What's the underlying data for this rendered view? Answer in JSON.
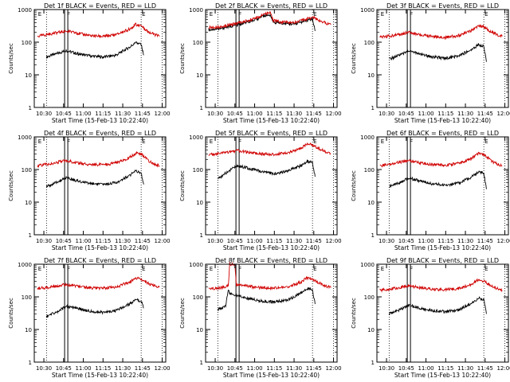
{
  "colors": {
    "events": "#000000",
    "lld": "#d00000",
    "axes": "#000000"
  },
  "common": {
    "xlabel": "Start Time (15-Feb-13 10:22:40)",
    "ylabel": "Counts/sec",
    "xtick_labels": [
      "10:30",
      "10:45",
      "11:00",
      "11:15",
      "11:30",
      "11:45",
      "12:00"
    ],
    "xtick_minutes": [
      30,
      45,
      60,
      75,
      90,
      105,
      120
    ],
    "ytick_labels": [
      "1",
      "10",
      "100",
      "1000"
    ],
    "yscale": "log",
    "ylim": [
      1,
      1000
    ],
    "xlim_minutes": [
      22.7,
      122.7
    ],
    "marker_letters": [
      "E",
      "F",
      "E"
    ],
    "marker_minutes": [
      25,
      47,
      104
    ],
    "dotted_minutes": [
      32,
      104,
      120
    ]
  },
  "chart_data": [
    {
      "type": "line",
      "title": "Det 1f BLACK = Events, RED = LLD",
      "ylabel": "Counts/sec",
      "xlabel": "Start Time (15-Feb-13 10:22:40)",
      "dotted_minutes": [
        32,
        104,
        120
      ],
      "series": [
        {
          "name": "Events",
          "color": "#000000",
          "x_minutes": [
            32,
            40,
            47,
            55,
            65,
            75,
            85,
            95,
            100,
            104,
            106
          ],
          "values": [
            35,
            45,
            55,
            45,
            38,
            35,
            40,
            70,
            95,
            85,
            40
          ]
        },
        {
          "name": "LLD",
          "color": "#d00000",
          "x_minutes": [
            25,
            35,
            47,
            55,
            65,
            75,
            85,
            95,
            100,
            104,
            110,
            118
          ],
          "values": [
            150,
            180,
            220,
            190,
            160,
            150,
            170,
            250,
            350,
            320,
            200,
            150
          ]
        }
      ]
    },
    {
      "type": "line",
      "title": "Det 2f BLACK = Events, RED = LLD",
      "ylabel": "Counts/sec",
      "xlabel": "Start Time (15-Feb-13 10:22:40)",
      "dotted_minutes": [
        32,
        104,
        120
      ],
      "series": [
        {
          "name": "Events",
          "color": "#000000",
          "x_minutes": [
            25,
            35,
            47,
            55,
            62,
            68,
            72,
            74,
            80,
            90,
            100,
            104,
            106
          ],
          "values": [
            240,
            270,
            340,
            420,
            520,
            650,
            700,
            420,
            380,
            360,
            470,
            520,
            220
          ]
        },
        {
          "name": "LLD",
          "color": "#d00000",
          "x_minutes": [
            25,
            35,
            47,
            55,
            62,
            68,
            72,
            74,
            80,
            90,
            100,
            104,
            110,
            118
          ],
          "values": [
            280,
            300,
            380,
            460,
            580,
            720,
            780,
            480,
            420,
            400,
            520,
            580,
            450,
            340
          ]
        }
      ]
    },
    {
      "type": "line",
      "title": "Det 3f BLACK = Events, RED = LLD",
      "ylabel": "Counts/sec",
      "xlabel": "Start Time (15-Feb-13 10:22:40)",
      "dotted_minutes": [
        32,
        104,
        120
      ],
      "series": [
        {
          "name": "Events",
          "color": "#000000",
          "x_minutes": [
            32,
            40,
            47,
            55,
            65,
            75,
            85,
            95,
            100,
            104,
            106
          ],
          "values": [
            30,
            40,
            55,
            45,
            35,
            32,
            38,
            60,
            85,
            75,
            25
          ]
        },
        {
          "name": "LLD",
          "color": "#d00000",
          "x_minutes": [
            25,
            35,
            47,
            55,
            65,
            75,
            85,
            95,
            100,
            104,
            110,
            118
          ],
          "values": [
            140,
            160,
            200,
            170,
            150,
            140,
            160,
            230,
            320,
            300,
            200,
            150
          ]
        }
      ]
    },
    {
      "type": "line",
      "title": "Det 4f BLACK = Events, RED = LLD",
      "ylabel": "Counts/sec",
      "xlabel": "Start Time (15-Feb-13 10:22:40)",
      "dotted_minutes": [
        32,
        104,
        120
      ],
      "series": [
        {
          "name": "Events",
          "color": "#000000",
          "x_minutes": [
            32,
            40,
            47,
            55,
            65,
            75,
            85,
            95,
            100,
            104,
            106
          ],
          "values": [
            30,
            40,
            55,
            45,
            38,
            35,
            40,
            65,
            90,
            80,
            35
          ]
        },
        {
          "name": "LLD",
          "color": "#d00000",
          "x_minutes": [
            25,
            35,
            47,
            55,
            65,
            75,
            85,
            95,
            100,
            104,
            110,
            118
          ],
          "values": [
            130,
            150,
            190,
            160,
            145,
            140,
            160,
            230,
            320,
            300,
            180,
            130
          ]
        }
      ]
    },
    {
      "type": "line",
      "title": "Det 5f BLACK = Events, RED = LLD",
      "ylabel": "Counts/sec",
      "xlabel": "Start Time (15-Feb-13 10:22:40)",
      "dotted_minutes": [
        32,
        104,
        120
      ],
      "series": [
        {
          "name": "Events",
          "color": "#000000",
          "x_minutes": [
            32,
            40,
            47,
            55,
            65,
            75,
            85,
            95,
            100,
            104,
            106
          ],
          "values": [
            50,
            90,
            130,
            110,
            85,
            75,
            90,
            130,
            180,
            160,
            60
          ]
        },
        {
          "name": "LLD",
          "color": "#d00000",
          "x_minutes": [
            25,
            35,
            47,
            55,
            65,
            75,
            85,
            95,
            100,
            104,
            110,
            118
          ],
          "values": [
            280,
            310,
            380,
            340,
            300,
            290,
            320,
            450,
            600,
            560,
            420,
            300
          ]
        }
      ]
    },
    {
      "type": "line",
      "title": "Det 6f BLACK = Events, RED = LLD",
      "ylabel": "Counts/sec",
      "xlabel": "Start Time (15-Feb-13 10:22:40)",
      "dotted_minutes": [
        32,
        104,
        120
      ],
      "series": [
        {
          "name": "Events",
          "color": "#000000",
          "x_minutes": [
            32,
            40,
            47,
            55,
            65,
            75,
            85,
            95,
            100,
            104,
            106
          ],
          "values": [
            30,
            40,
            55,
            45,
            36,
            33,
            38,
            60,
            85,
            78,
            25
          ]
        },
        {
          "name": "LLD",
          "color": "#d00000",
          "x_minutes": [
            25,
            35,
            47,
            55,
            65,
            75,
            85,
            95,
            100,
            104,
            110,
            118
          ],
          "values": [
            130,
            150,
            190,
            160,
            140,
            135,
            155,
            220,
            310,
            290,
            180,
            130
          ]
        }
      ]
    },
    {
      "type": "line",
      "title": "Det 7f BLACK = Events, RED = LLD",
      "ylabel": "Counts/sec",
      "xlabel": "Start Time (15-Feb-13 10:22:40)",
      "dotted_minutes": [
        32,
        104,
        120
      ],
      "series": [
        {
          "name": "Events",
          "color": "#000000",
          "x_minutes": [
            32,
            40,
            47,
            55,
            65,
            75,
            85,
            95,
            100,
            104,
            106
          ],
          "values": [
            25,
            35,
            50,
            45,
            36,
            33,
            38,
            60,
            80,
            75,
            45
          ]
        },
        {
          "name": "LLD",
          "color": "#d00000",
          "x_minutes": [
            25,
            35,
            47,
            55,
            65,
            75,
            85,
            95,
            100,
            104,
            110,
            118
          ],
          "values": [
            180,
            200,
            240,
            210,
            190,
            185,
            200,
            280,
            380,
            350,
            250,
            200
          ]
        }
      ]
    },
    {
      "type": "line",
      "title": "Det 8f BLACK = Events, RED = LLD",
      "ylabel": "Counts/sec",
      "xlabel": "Start Time (15-Feb-13 10:22:40)",
      "dotted_minutes": [
        32,
        104,
        120
      ],
      "series": [
        {
          "name": "Events",
          "color": "#000000",
          "x_minutes": [
            32,
            38,
            40,
            41,
            47,
            55,
            65,
            75,
            85,
            95,
            100,
            104,
            106
          ],
          "values": [
            40,
            55,
            160,
            130,
            110,
            90,
            75,
            70,
            80,
            130,
            180,
            160,
            60
          ]
        },
        {
          "name": "LLD",
          "color": "#d00000",
          "x_minutes": [
            25,
            35,
            40,
            41,
            45,
            46,
            47,
            55,
            65,
            75,
            85,
            95,
            100,
            104,
            110,
            118
          ],
          "values": [
            170,
            190,
            220,
            1000,
            1000,
            220,
            240,
            210,
            190,
            185,
            200,
            280,
            380,
            350,
            250,
            190
          ]
        }
      ]
    },
    {
      "type": "line",
      "title": "Det 9f BLACK = Events, RED = LLD",
      "ylabel": "Counts/sec",
      "xlabel": "Start Time (15-Feb-13 10:22:40)",
      "dotted_minutes": [
        32,
        104,
        120
      ],
      "series": [
        {
          "name": "Events",
          "color": "#000000",
          "x_minutes": [
            32,
            40,
            47,
            55,
            65,
            75,
            85,
            95,
            100,
            104,
            106
          ],
          "values": [
            30,
            40,
            55,
            45,
            38,
            35,
            40,
            65,
            90,
            85,
            30
          ]
        },
        {
          "name": "LLD",
          "color": "#d00000",
          "x_minutes": [
            25,
            35,
            47,
            55,
            65,
            75,
            85,
            95,
            100,
            104,
            110,
            118
          ],
          "values": [
            160,
            180,
            220,
            190,
            170,
            165,
            180,
            250,
            340,
            310,
            210,
            160
          ]
        }
      ]
    }
  ]
}
